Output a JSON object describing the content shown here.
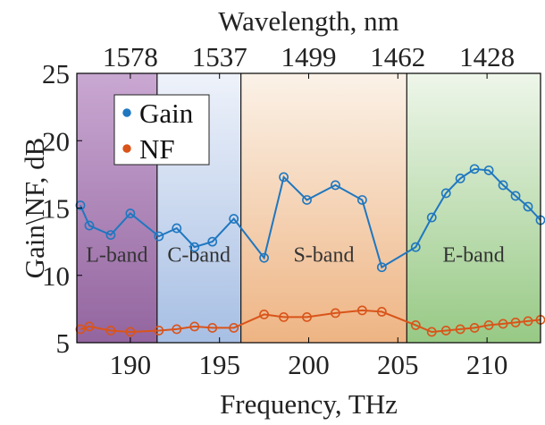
{
  "chart_data": {
    "type": "line",
    "xlabel": "Frequency, THz",
    "ylabel": "Gain\\NF, dB",
    "top_axis_label": "Wavelength, nm",
    "xlim": [
      187,
      213
    ],
    "ylim": [
      5,
      25
    ],
    "x_ticks": [
      190,
      195,
      200,
      205,
      210
    ],
    "y_ticks": [
      5,
      10,
      15,
      20,
      25
    ],
    "top_ticks": [
      {
        "label": "1578",
        "freq": 190
      },
      {
        "label": "1537",
        "freq": 195
      },
      {
        "label": "1499",
        "freq": 200
      },
      {
        "label": "1462",
        "freq": 205
      },
      {
        "label": "1428",
        "freq": 210
      }
    ],
    "bands": [
      {
        "label": "L-band",
        "from": 187,
        "to": 191.5,
        "color_top": "#c9a8d2",
        "color_bottom": "#93659f"
      },
      {
        "label": "C-band",
        "from": 191.5,
        "to": 196.2,
        "color_top": "#eef2fa",
        "color_bottom": "#a7bfe4"
      },
      {
        "label": "S-band",
        "from": 196.2,
        "to": 205.5,
        "color_top": "#fbf2e8",
        "color_bottom": "#eeb483"
      },
      {
        "label": "E-band",
        "from": 205.5,
        "to": 213,
        "color_top": "#eef6ea",
        "color_bottom": "#97c985"
      }
    ],
    "band_label_y": 11.6,
    "series": [
      {
        "name": "Gain",
        "color": "#1f77c0",
        "x": [
          187.2,
          187.7,
          188.9,
          190.0,
          191.6,
          192.6,
          193.6,
          194.6,
          195.8,
          197.5,
          198.6,
          199.9,
          201.5,
          203.0,
          204.1,
          206.0,
          206.9,
          207.7,
          208.5,
          209.3,
          210.1,
          210.9,
          211.6,
          212.3,
          213.0
        ],
        "values": [
          15.2,
          13.7,
          13.0,
          14.6,
          12.9,
          13.5,
          12.1,
          12.5,
          14.2,
          11.3,
          17.3,
          15.6,
          16.7,
          15.6,
          10.6,
          12.1,
          14.3,
          16.1,
          17.2,
          17.9,
          17.8,
          16.7,
          15.9,
          15.1,
          14.1
        ]
      },
      {
        "name": "NF",
        "color": "#d9541a",
        "x": [
          187.2,
          187.7,
          188.9,
          190.0,
          191.6,
          192.6,
          193.6,
          194.6,
          195.8,
          197.5,
          198.6,
          199.9,
          201.5,
          203.0,
          204.1,
          206.0,
          206.9,
          207.7,
          208.5,
          209.3,
          210.1,
          210.9,
          211.6,
          212.3,
          213.0
        ],
        "values": [
          6.0,
          6.2,
          5.9,
          5.8,
          5.9,
          6.0,
          6.2,
          6.1,
          6.1,
          7.1,
          6.9,
          6.9,
          7.2,
          7.4,
          7.3,
          6.3,
          5.8,
          5.9,
          6.0,
          6.1,
          6.3,
          6.4,
          6.5,
          6.6,
          6.7
        ]
      }
    ],
    "legend_placement": "top-left",
    "grid": false
  }
}
